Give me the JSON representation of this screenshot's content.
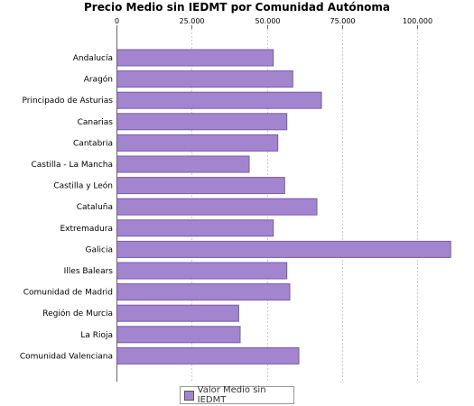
{
  "chart_data": {
    "type": "bar",
    "orientation": "horizontal",
    "title": "Precio Medio sin IEDMT por Comunidad Autónoma",
    "categories": [
      "Andalucía",
      "Aragón",
      "Principado de Asturias",
      "Canarias",
      "Cantabria",
      "Castilla - La Mancha",
      "Castilla y León",
      "Cataluña",
      "Extremadura",
      "Galicia",
      "Illes Balears",
      "Comunidad de Madrid",
      "Región de Murcia",
      "La Rioja",
      "Comunidad Valenciana"
    ],
    "series": [
      {
        "name": "Valor Medio sin IEDMT",
        "values": [
          52000,
          58500,
          68000,
          56500,
          53500,
          44000,
          55800,
          66500,
          52000,
          111000,
          56500,
          57500,
          40500,
          41000,
          60500
        ]
      }
    ],
    "x_ticks": [
      "0",
      "25.000",
      "50.000",
      "75.000",
      "100.000"
    ],
    "xlim": [
      0,
      115000
    ],
    "grid": true,
    "legend_position": "bottom",
    "colors": {
      "bar": "#a385cf",
      "bar_border": "#7a5aa8",
      "grid": "#cccccc"
    }
  }
}
